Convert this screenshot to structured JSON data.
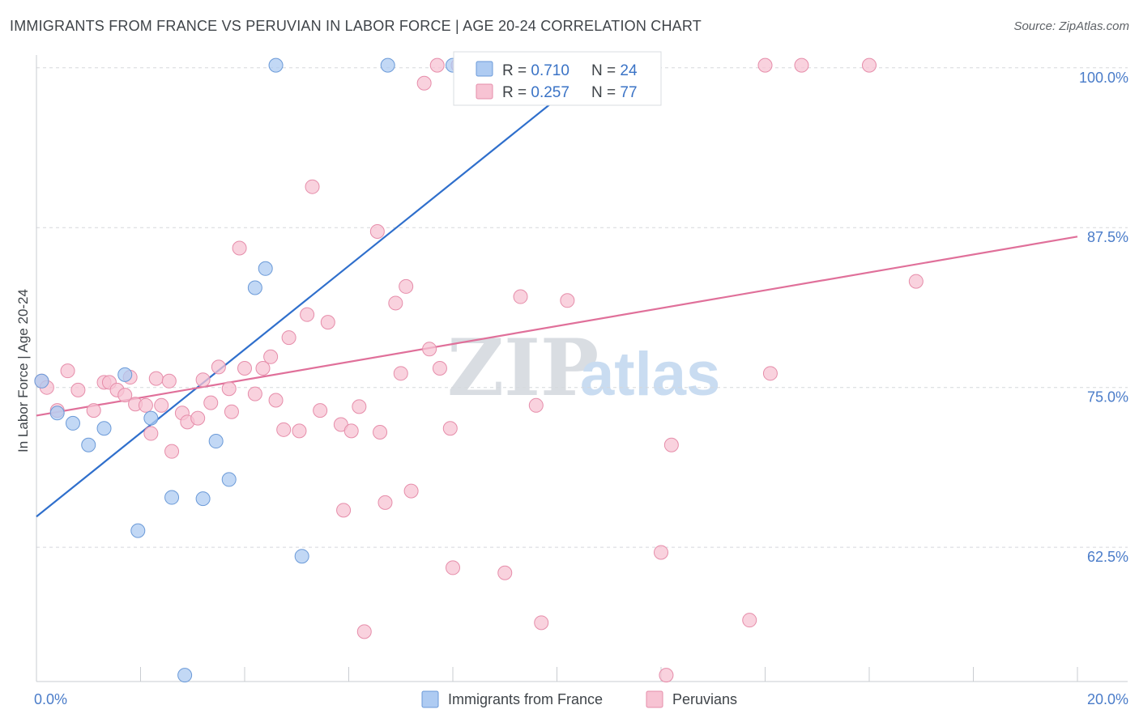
{
  "header": {
    "title": "IMMIGRANTS FROM FRANCE VS PERUVIAN IN LABOR FORCE | AGE 20-24 CORRELATION CHART",
    "source": "Source: ZipAtlas.com"
  },
  "watermark": {
    "zip": "ZIP",
    "atlas": "atlas"
  },
  "colors": {
    "france_fill": "#aecbf2",
    "france_stroke": "#6b9ad8",
    "france_line": "#2f6fcc",
    "peru_fill": "#f7c3d3",
    "peru_stroke": "#e68daa",
    "peru_line": "#e0709a",
    "grid": "#d5d8dc",
    "tick_label": "#4a7cc9"
  },
  "legend": {
    "rows": [
      {
        "r_label": "R = ",
        "r_value": "0.710",
        "n_label": "N = ",
        "n_value": "24"
      },
      {
        "r_label": "R = ",
        "r_value": "0.257",
        "n_label": "N = ",
        "n_value": "77"
      }
    ]
  },
  "chart_data": {
    "type": "scatter",
    "title": "IMMIGRANTS FROM FRANCE VS PERUVIAN IN LABOR FORCE | AGE 20-24 CORRELATION CHART",
    "xlabel": "",
    "ylabel": "In Labor Force | Age 20-24",
    "xlim": [
      0,
      20
    ],
    "ylim": [
      52,
      101
    ],
    "x_tick_labels": [
      {
        "value": 0,
        "label": "0.0%"
      },
      {
        "value": 20,
        "label": "20.0%"
      }
    ],
    "y_tick_labels": [
      {
        "value": 100,
        "label": "100.0%"
      },
      {
        "value": 87.5,
        "label": "87.5%"
      },
      {
        "value": 75,
        "label": "75.0%"
      },
      {
        "value": 62.5,
        "label": "62.5%"
      }
    ],
    "grid": true,
    "legend_position": "top-center",
    "series": [
      {
        "name": "Immigrants from France",
        "color": "#aecbf2",
        "points": [
          [
            0.1,
            75.5
          ],
          [
            0.4,
            73.0
          ],
          [
            0.7,
            72.2
          ],
          [
            1.0,
            70.5
          ],
          [
            1.3,
            71.8
          ],
          [
            1.7,
            76.0
          ],
          [
            1.95,
            63.8
          ],
          [
            2.2,
            72.6
          ],
          [
            2.6,
            66.4
          ],
          [
            2.85,
            52.5
          ],
          [
            3.2,
            66.3
          ],
          [
            3.45,
            70.8
          ],
          [
            3.7,
            67.8
          ],
          [
            4.2,
            82.8
          ],
          [
            4.4,
            84.3
          ],
          [
            4.6,
            100.2
          ],
          [
            5.1,
            61.8
          ],
          [
            6.75,
            100.2
          ],
          [
            8.0,
            100.2
          ],
          [
            9.3,
            100.2
          ],
          [
            8.3,
            100.2
          ],
          [
            10.2,
            100.2
          ],
          [
            10.8,
            100.2
          ],
          [
            9.6,
            100.2
          ]
        ],
        "trend": [
          [
            0,
            64.9
          ],
          [
            10.8,
            100.2
          ]
        ]
      },
      {
        "name": "Peruvians",
        "color": "#f7c3d3",
        "points": [
          [
            0.1,
            75.5
          ],
          [
            0.2,
            75.0
          ],
          [
            0.4,
            73.2
          ],
          [
            0.6,
            76.3
          ],
          [
            0.8,
            74.8
          ],
          [
            1.1,
            73.2
          ],
          [
            1.3,
            75.4
          ],
          [
            1.4,
            75.4
          ],
          [
            1.55,
            74.8
          ],
          [
            1.7,
            74.4
          ],
          [
            1.8,
            75.8
          ],
          [
            1.9,
            73.7
          ],
          [
            2.1,
            73.6
          ],
          [
            2.2,
            71.4
          ],
          [
            2.3,
            75.7
          ],
          [
            2.4,
            73.6
          ],
          [
            2.55,
            75.5
          ],
          [
            2.6,
            70.0
          ],
          [
            2.8,
            73.0
          ],
          [
            2.9,
            72.3
          ],
          [
            3.1,
            72.6
          ],
          [
            3.2,
            75.6
          ],
          [
            3.35,
            73.8
          ],
          [
            3.5,
            76.6
          ],
          [
            3.7,
            74.9
          ],
          [
            3.75,
            73.1
          ],
          [
            3.9,
            85.9
          ],
          [
            4.0,
            76.5
          ],
          [
            4.2,
            74.5
          ],
          [
            4.35,
            76.5
          ],
          [
            4.5,
            77.4
          ],
          [
            4.6,
            74.0
          ],
          [
            4.75,
            71.7
          ],
          [
            4.85,
            78.9
          ],
          [
            5.05,
            71.6
          ],
          [
            5.2,
            80.7
          ],
          [
            5.3,
            90.7
          ],
          [
            5.45,
            73.2
          ],
          [
            5.6,
            80.1
          ],
          [
            5.85,
            72.1
          ],
          [
            5.9,
            65.4
          ],
          [
            6.05,
            71.6
          ],
          [
            6.2,
            73.5
          ],
          [
            6.3,
            55.9
          ],
          [
            6.55,
            87.2
          ],
          [
            6.6,
            71.5
          ],
          [
            6.7,
            66.0
          ],
          [
            6.9,
            81.6
          ],
          [
            7.0,
            76.1
          ],
          [
            7.1,
            82.9
          ],
          [
            7.2,
            66.9
          ],
          [
            7.45,
            98.8
          ],
          [
            7.55,
            78.0
          ],
          [
            7.75,
            76.5
          ],
          [
            7.95,
            71.8
          ],
          [
            8.0,
            60.9
          ],
          [
            8.1,
            100.2
          ],
          [
            9.0,
            60.5
          ],
          [
            9.1,
            100.2
          ],
          [
            9.3,
            82.1
          ],
          [
            9.5,
            100.2
          ],
          [
            9.6,
            73.6
          ],
          [
            9.7,
            56.6
          ],
          [
            10.2,
            81.8
          ],
          [
            11.6,
            100.2
          ],
          [
            12.1,
            52.5
          ],
          [
            12.0,
            62.1
          ],
          [
            12.2,
            70.5
          ],
          [
            13.7,
            56.8
          ],
          [
            14.0,
            100.2
          ],
          [
            14.1,
            76.1
          ],
          [
            14.7,
            100.2
          ],
          [
            16.0,
            100.2
          ],
          [
            16.9,
            83.3
          ],
          [
            7.7,
            100.2
          ],
          [
            10.9,
            100.2
          ],
          [
            8.6,
            100.2
          ]
        ],
        "trend": [
          [
            0,
            72.8
          ],
          [
            20,
            86.8
          ]
        ]
      }
    ]
  }
}
